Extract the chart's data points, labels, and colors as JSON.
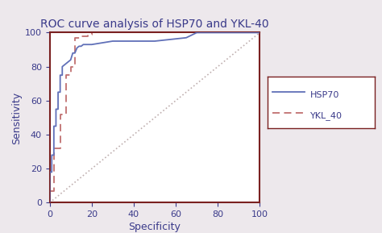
{
  "title": "ROC curve analysis of HSP70 and YKL-40",
  "xlabel": "Specificity",
  "ylabel": "Sensitivity",
  "xlim": [
    0,
    100
  ],
  "ylim": [
    0,
    100
  ],
  "xticks": [
    0,
    20,
    40,
    60,
    80,
    100
  ],
  "yticks": [
    0,
    20,
    40,
    60,
    80,
    100
  ],
  "background_color": "#ede8ec",
  "plot_bg_color": "#ffffff",
  "border_color": "#7a2020",
  "title_color": "#3a3a8a",
  "axis_label_color": "#3a3a8a",
  "tick_color": "#3a3a8a",
  "hsp70_color": "#6070b8",
  "ykl40_color": "#c07070",
  "diagonal_color": "#c0b0b0",
  "hsp70_x": [
    0,
    0,
    1,
    1,
    2,
    2,
    3,
    3,
    4,
    4,
    5,
    5,
    6,
    6,
    7,
    8,
    9,
    10,
    11,
    12,
    13,
    14,
    15,
    16,
    17,
    18,
    19,
    20,
    25,
    30,
    35,
    40,
    50,
    65,
    70,
    100
  ],
  "hsp70_y": [
    0,
    18,
    18,
    28,
    28,
    45,
    45,
    55,
    55,
    65,
    65,
    75,
    75,
    80,
    81,
    82,
    83,
    84,
    88,
    88,
    91,
    92,
    92,
    93,
    93,
    93,
    93,
    93,
    94,
    95,
    95,
    95,
    95,
    97,
    100,
    100
  ],
  "ykl40_x": [
    0,
    0,
    2,
    2,
    5,
    5,
    8,
    8,
    10,
    10,
    12,
    12,
    15,
    15,
    18,
    18,
    20,
    20,
    22,
    100
  ],
  "ykl40_y": [
    0,
    7,
    7,
    32,
    32,
    52,
    52,
    75,
    75,
    80,
    80,
    97,
    97,
    98,
    98,
    99,
    99,
    100,
    100,
    100
  ],
  "legend_hsp70": "HSP70",
  "legend_ykl40": "YKL_40",
  "title_fontsize": 10,
  "axis_fontsize": 9,
  "tick_fontsize": 8,
  "legend_fontsize": 8
}
